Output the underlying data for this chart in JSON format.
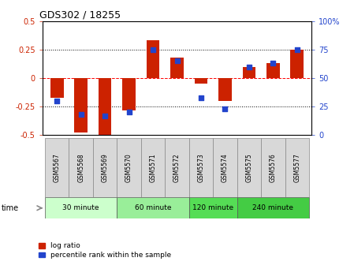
{
  "title": "GDS302 / 18255",
  "samples": [
    "GSM5567",
    "GSM5568",
    "GSM5569",
    "GSM5570",
    "GSM5571",
    "GSM5572",
    "GSM5573",
    "GSM5574",
    "GSM5575",
    "GSM5576",
    "GSM5577"
  ],
  "log_ratio": [
    -0.17,
    -0.48,
    -0.5,
    -0.28,
    0.33,
    0.18,
    -0.05,
    -0.2,
    0.1,
    0.13,
    0.25
  ],
  "percentile": [
    30,
    18,
    17,
    20,
    75,
    65,
    33,
    23,
    60,
    63,
    75
  ],
  "bar_color": "#cc2200",
  "dot_color": "#2244cc",
  "ylim_left": [
    -0.5,
    0.5
  ],
  "ylim_right": [
    0,
    100
  ],
  "yticks_left": [
    -0.5,
    -0.25,
    0,
    0.25,
    0.5
  ],
  "yticks_right": [
    0,
    25,
    50,
    75,
    100
  ],
  "hlines": [
    -0.25,
    0,
    0.25
  ],
  "hline_styles": [
    "dotted",
    "dashed",
    "dotted"
  ],
  "hline_colors": [
    "black",
    "red",
    "black"
  ],
  "groups": [
    {
      "label": "30 minute",
      "start": 0,
      "end": 3,
      "color": "#ccffcc"
    },
    {
      "label": "60 minute",
      "start": 3,
      "end": 6,
      "color": "#99ee99"
    },
    {
      "label": "120 minute",
      "start": 6,
      "end": 8,
      "color": "#55dd55"
    },
    {
      "label": "240 minute",
      "start": 8,
      "end": 11,
      "color": "#44cc44"
    }
  ],
  "time_label": "time",
  "legend_bar_label": "log ratio",
  "legend_dot_label": "percentile rank within the sample",
  "bg_color": "#ffffff",
  "plot_bg_color": "#ffffff",
  "tick_label_color_left": "#cc2200",
  "tick_label_color_right": "#2244cc",
  "bar_width": 0.55,
  "fig_width": 4.49,
  "fig_height": 3.36,
  "dpi": 100
}
